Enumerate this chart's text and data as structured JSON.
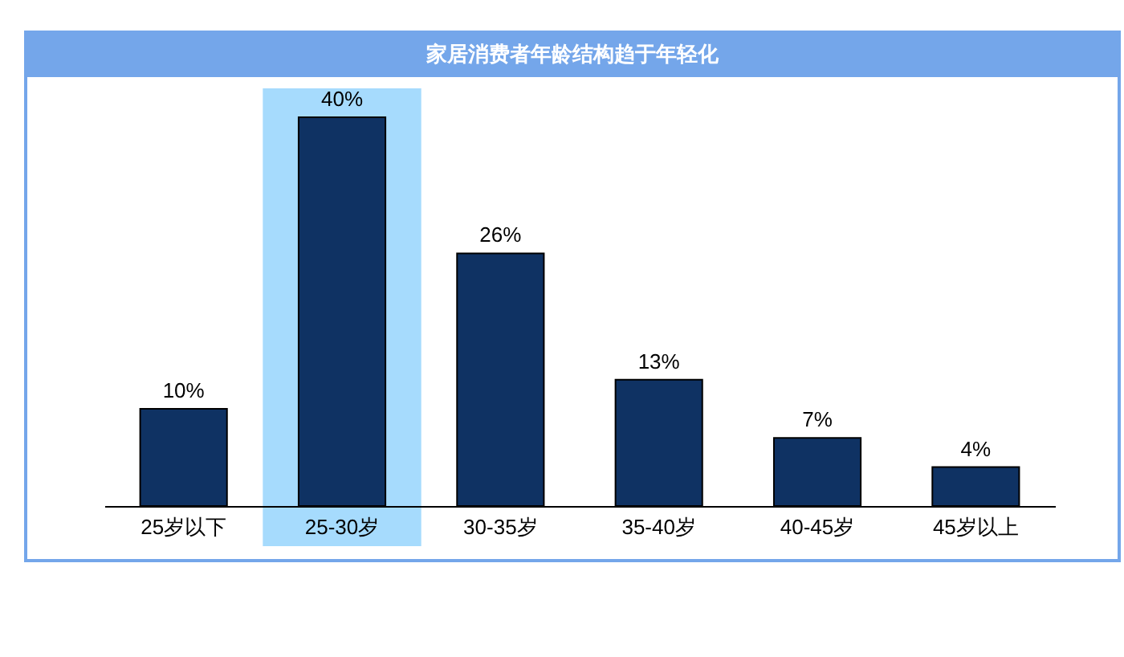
{
  "chart_data": {
    "type": "bar",
    "title": "家居消费者年龄结构趋于年轻化",
    "categories": [
      "25岁以下",
      "25-30岁",
      "30-35岁",
      "35-40岁",
      "40-45岁",
      "45岁以上"
    ],
    "values": [
      10,
      40,
      26,
      13,
      7,
      4
    ],
    "value_labels": [
      "10%",
      "40%",
      "26%",
      "13%",
      "7%",
      "4%"
    ],
    "color": "#0f3263",
    "bands": [
      {
        "axis": "x",
        "from": "25-30岁",
        "to": "25-30岁",
        "color": "#a6dbfd"
      }
    ],
    "tick_labels": "x"
  }
}
